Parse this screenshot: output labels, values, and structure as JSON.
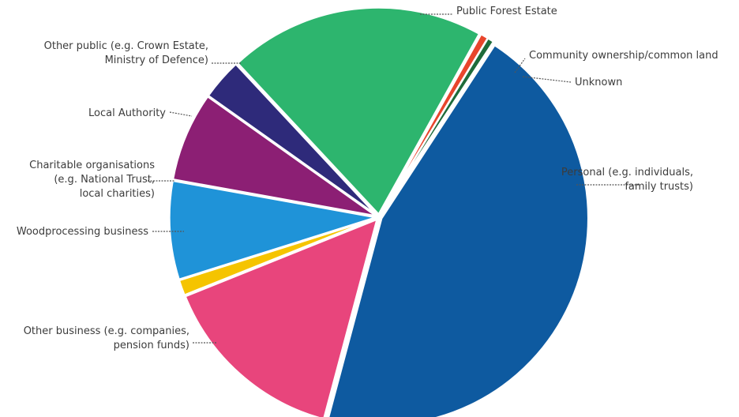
{
  "chart_data": {
    "type": "pie",
    "title": "",
    "slices": [
      {
        "label": [
          "Public Forest Estate"
        ],
        "value": 19.8,
        "color": "#2db56e"
      },
      {
        "label": [
          "Community ownership/common land"
        ],
        "value": 0.6,
        "color": "#e8452c"
      },
      {
        "label": [
          "Unknown"
        ],
        "value": 0.5,
        "color": "#1e6b3a"
      },
      {
        "label": [
          "Personal (e.g. individuals,",
          "family trusts)"
        ],
        "value": 44.4,
        "color": "#0e5aa0"
      },
      {
        "label": [
          "Other business (e.g. companies,",
          "pension funds)"
        ],
        "value": 14.6,
        "color": "#e8457c"
      },
      {
        "label": [
          "Woodprocessing business"
        ],
        "value": 1.2,
        "color": "#f5c400"
      },
      {
        "label": [
          "Charitable organisations",
          "(e.g. National Trust,",
          "local charities)"
        ],
        "value": 7.6,
        "color": "#1f93d8"
      },
      {
        "label": [
          "Local Authority"
        ],
        "value": 6.9,
        "color": "#8c1f74"
      },
      {
        "label": [
          "Other public (e.g. Crown Estate,",
          "Ministry of Defence)"
        ],
        "value": 3.2,
        "color": "#2e2a7a"
      }
    ]
  }
}
